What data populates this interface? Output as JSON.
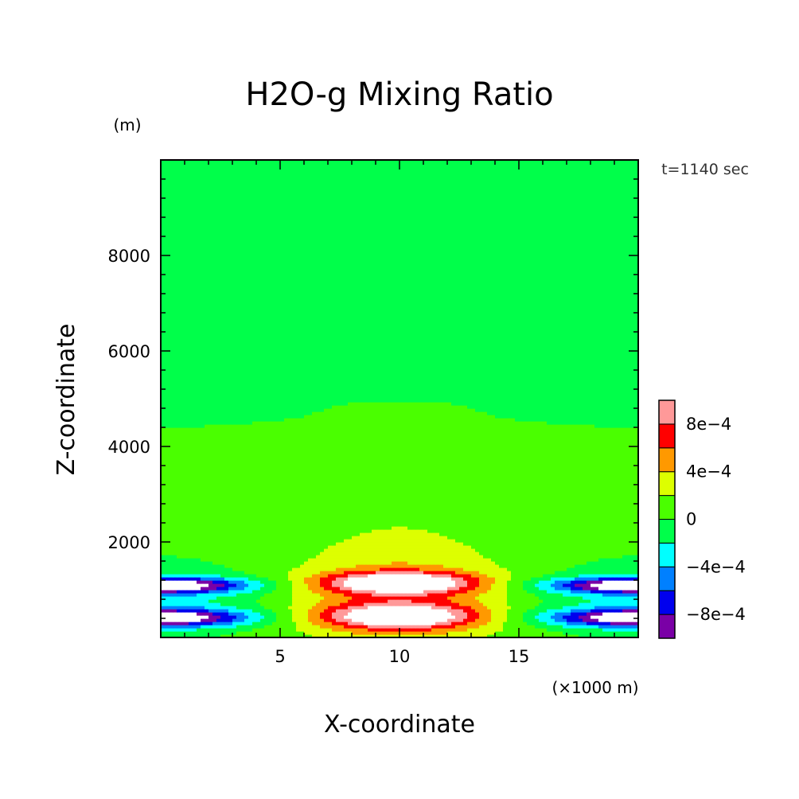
{
  "chart_data": {
    "type": "heatmap",
    "title": "H2O-g Mixing Ratio",
    "xlabel": "X-coordinate",
    "ylabel": "Z-coordinate",
    "x_unit": "(×1000 m)",
    "y_unit": "(m)",
    "time_label": "t=1140 sec",
    "xlim": [
      0,
      20
    ],
    "ylim": [
      0,
      10000
    ],
    "x_ticks": [
      5,
      10,
      15
    ],
    "y_ticks": [
      2000,
      4000,
      6000,
      8000
    ],
    "colorbar": {
      "levels": [
        -0.001,
        -0.0008,
        -0.0006,
        -0.0004,
        -0.0002,
        0,
        0.0002,
        0.0004,
        0.0006,
        0.0008,
        0.001
      ],
      "tick_values": [
        -0.0008,
        -0.0004,
        0,
        0.0004,
        0.0008
      ],
      "tick_labels": [
        "−8e−4",
        "−4e−4",
        "0",
        "4e−4",
        "8e−4"
      ],
      "colors": [
        "#7a00a6",
        "#0000ee",
        "#0080ff",
        "#00ffff",
        "#00ff4a",
        "#4aff00",
        "#ddff00",
        "#ff9900",
        "#ff0000",
        "#ff9999"
      ],
      "under_color": "#ffffff",
      "over_color": "#ffffff"
    },
    "field": {
      "background": 5e-05,
      "plume_below_z": 4700,
      "value_outside_mid_column": -5e-05
    }
  }
}
